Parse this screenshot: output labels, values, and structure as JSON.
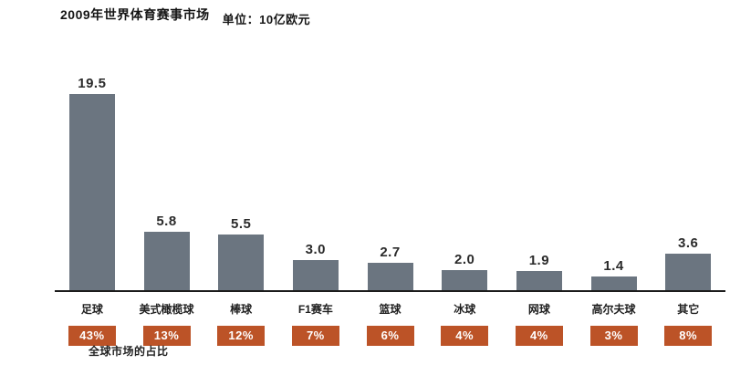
{
  "header": {
    "title": "2009年世界体育赛事市场",
    "unit_label": "单位：10亿欧元"
  },
  "footer": {
    "caption": "全球市场的占比"
  },
  "colors": {
    "bar": "#6b7580",
    "badge": "#bc5327",
    "badge_text": "#ffffff",
    "axis_line": "#1c1c1c",
    "text": "#1a1a1a"
  },
  "chart_data": {
    "type": "bar",
    "title": "2009年世界体育赛事市场",
    "unit": "10亿欧元",
    "categories": [
      "足球",
      "美式橄榄球",
      "棒球",
      "F1赛车",
      "篮球",
      "冰球",
      "网球",
      "高尔夫球",
      "其它"
    ],
    "values": [
      19.5,
      5.8,
      5.5,
      3.0,
      2.7,
      2.0,
      1.9,
      1.4,
      3.6
    ],
    "value_labels": [
      "19.5",
      "5.8",
      "5.5",
      "3.0",
      "2.7",
      "2.0",
      "1.9",
      "1.4",
      "3.6"
    ],
    "share_percent": [
      "43%",
      "13%",
      "12%",
      "7%",
      "6%",
      "4%",
      "4%",
      "3%",
      "8%"
    ],
    "xlabel": "",
    "ylabel": "",
    "ylim": [
      0,
      20
    ],
    "grid": false,
    "legend": false,
    "value_labels_shown": true,
    "share_badges_shown": true
  }
}
